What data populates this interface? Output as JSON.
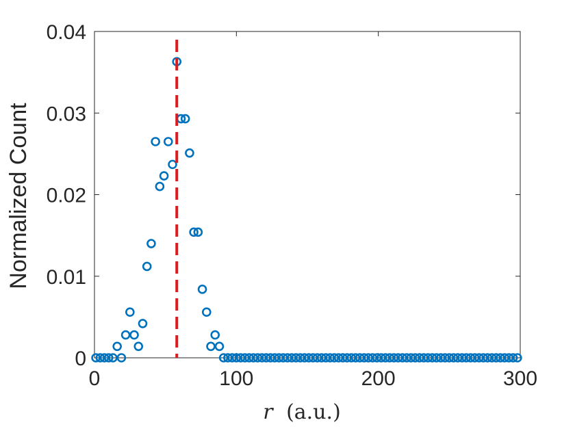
{
  "chart_data": {
    "type": "scatter",
    "title": "",
    "xlabel_var": "r",
    "xlabel_unit": "(a.u.)",
    "ylabel": "Normalized Count",
    "xlim": [
      0,
      300
    ],
    "ylim": [
      0,
      0.04
    ],
    "xticks": [
      0,
      100,
      200,
      300
    ],
    "xtick_labels": [
      "0",
      "100",
      "200",
      "300"
    ],
    "yticks": [
      0,
      0.01,
      0.02,
      0.03,
      0.04
    ],
    "ytick_labels": [
      "0",
      "0.01",
      "0.02",
      "0.03",
      "0.04"
    ],
    "grid": false,
    "marker": "circle",
    "marker_color": "#0072BD",
    "reference_line": {
      "x": 58,
      "color": "#E0191C",
      "style": "dashed"
    },
    "series": [
      {
        "x": [
          1,
          4,
          7,
          10,
          13,
          16,
          19,
          22,
          25,
          28,
          31,
          34,
          37,
          40,
          43,
          46,
          49,
          52,
          55,
          58,
          61,
          64,
          67,
          70,
          73,
          76,
          79,
          82,
          85,
          88,
          91,
          94,
          97,
          100,
          103,
          106,
          109,
          112,
          115,
          118,
          121,
          124,
          127,
          130,
          133,
          136,
          139,
          142,
          145,
          148,
          151,
          154,
          157,
          160,
          163,
          166,
          169,
          172,
          175,
          178,
          181,
          184,
          187,
          190,
          193,
          196,
          199,
          202,
          205,
          208,
          211,
          214,
          217,
          220,
          223,
          226,
          229,
          232,
          235,
          238,
          241,
          244,
          247,
          250,
          253,
          256,
          259,
          262,
          265,
          268,
          271,
          274,
          277,
          280,
          283,
          286,
          289,
          292,
          295,
          298
        ],
        "y": [
          0,
          0,
          0,
          0,
          0,
          0.0014,
          0,
          0.0028,
          0.0056,
          0.0028,
          0.0014,
          0.0042,
          0.0112,
          0.014,
          0.0265,
          0.021,
          0.0223,
          0.0265,
          0.0237,
          0.0363,
          0.0293,
          0.0293,
          0.0251,
          0.0154,
          0.0154,
          0.0084,
          0.0056,
          0.0014,
          0.0028,
          0.0014,
          0,
          0,
          0,
          0,
          0,
          0,
          0,
          0,
          0,
          0,
          0,
          0,
          0,
          0,
          0,
          0,
          0,
          0,
          0,
          0,
          0,
          0,
          0,
          0,
          0,
          0,
          0,
          0,
          0,
          0,
          0,
          0,
          0,
          0,
          0,
          0,
          0,
          0,
          0,
          0,
          0,
          0,
          0,
          0,
          0,
          0,
          0,
          0,
          0,
          0,
          0,
          0,
          0,
          0,
          0,
          0,
          0,
          0,
          0,
          0,
          0,
          0,
          0,
          0,
          0,
          0,
          0,
          0,
          0,
          0
        ]
      }
    ]
  }
}
